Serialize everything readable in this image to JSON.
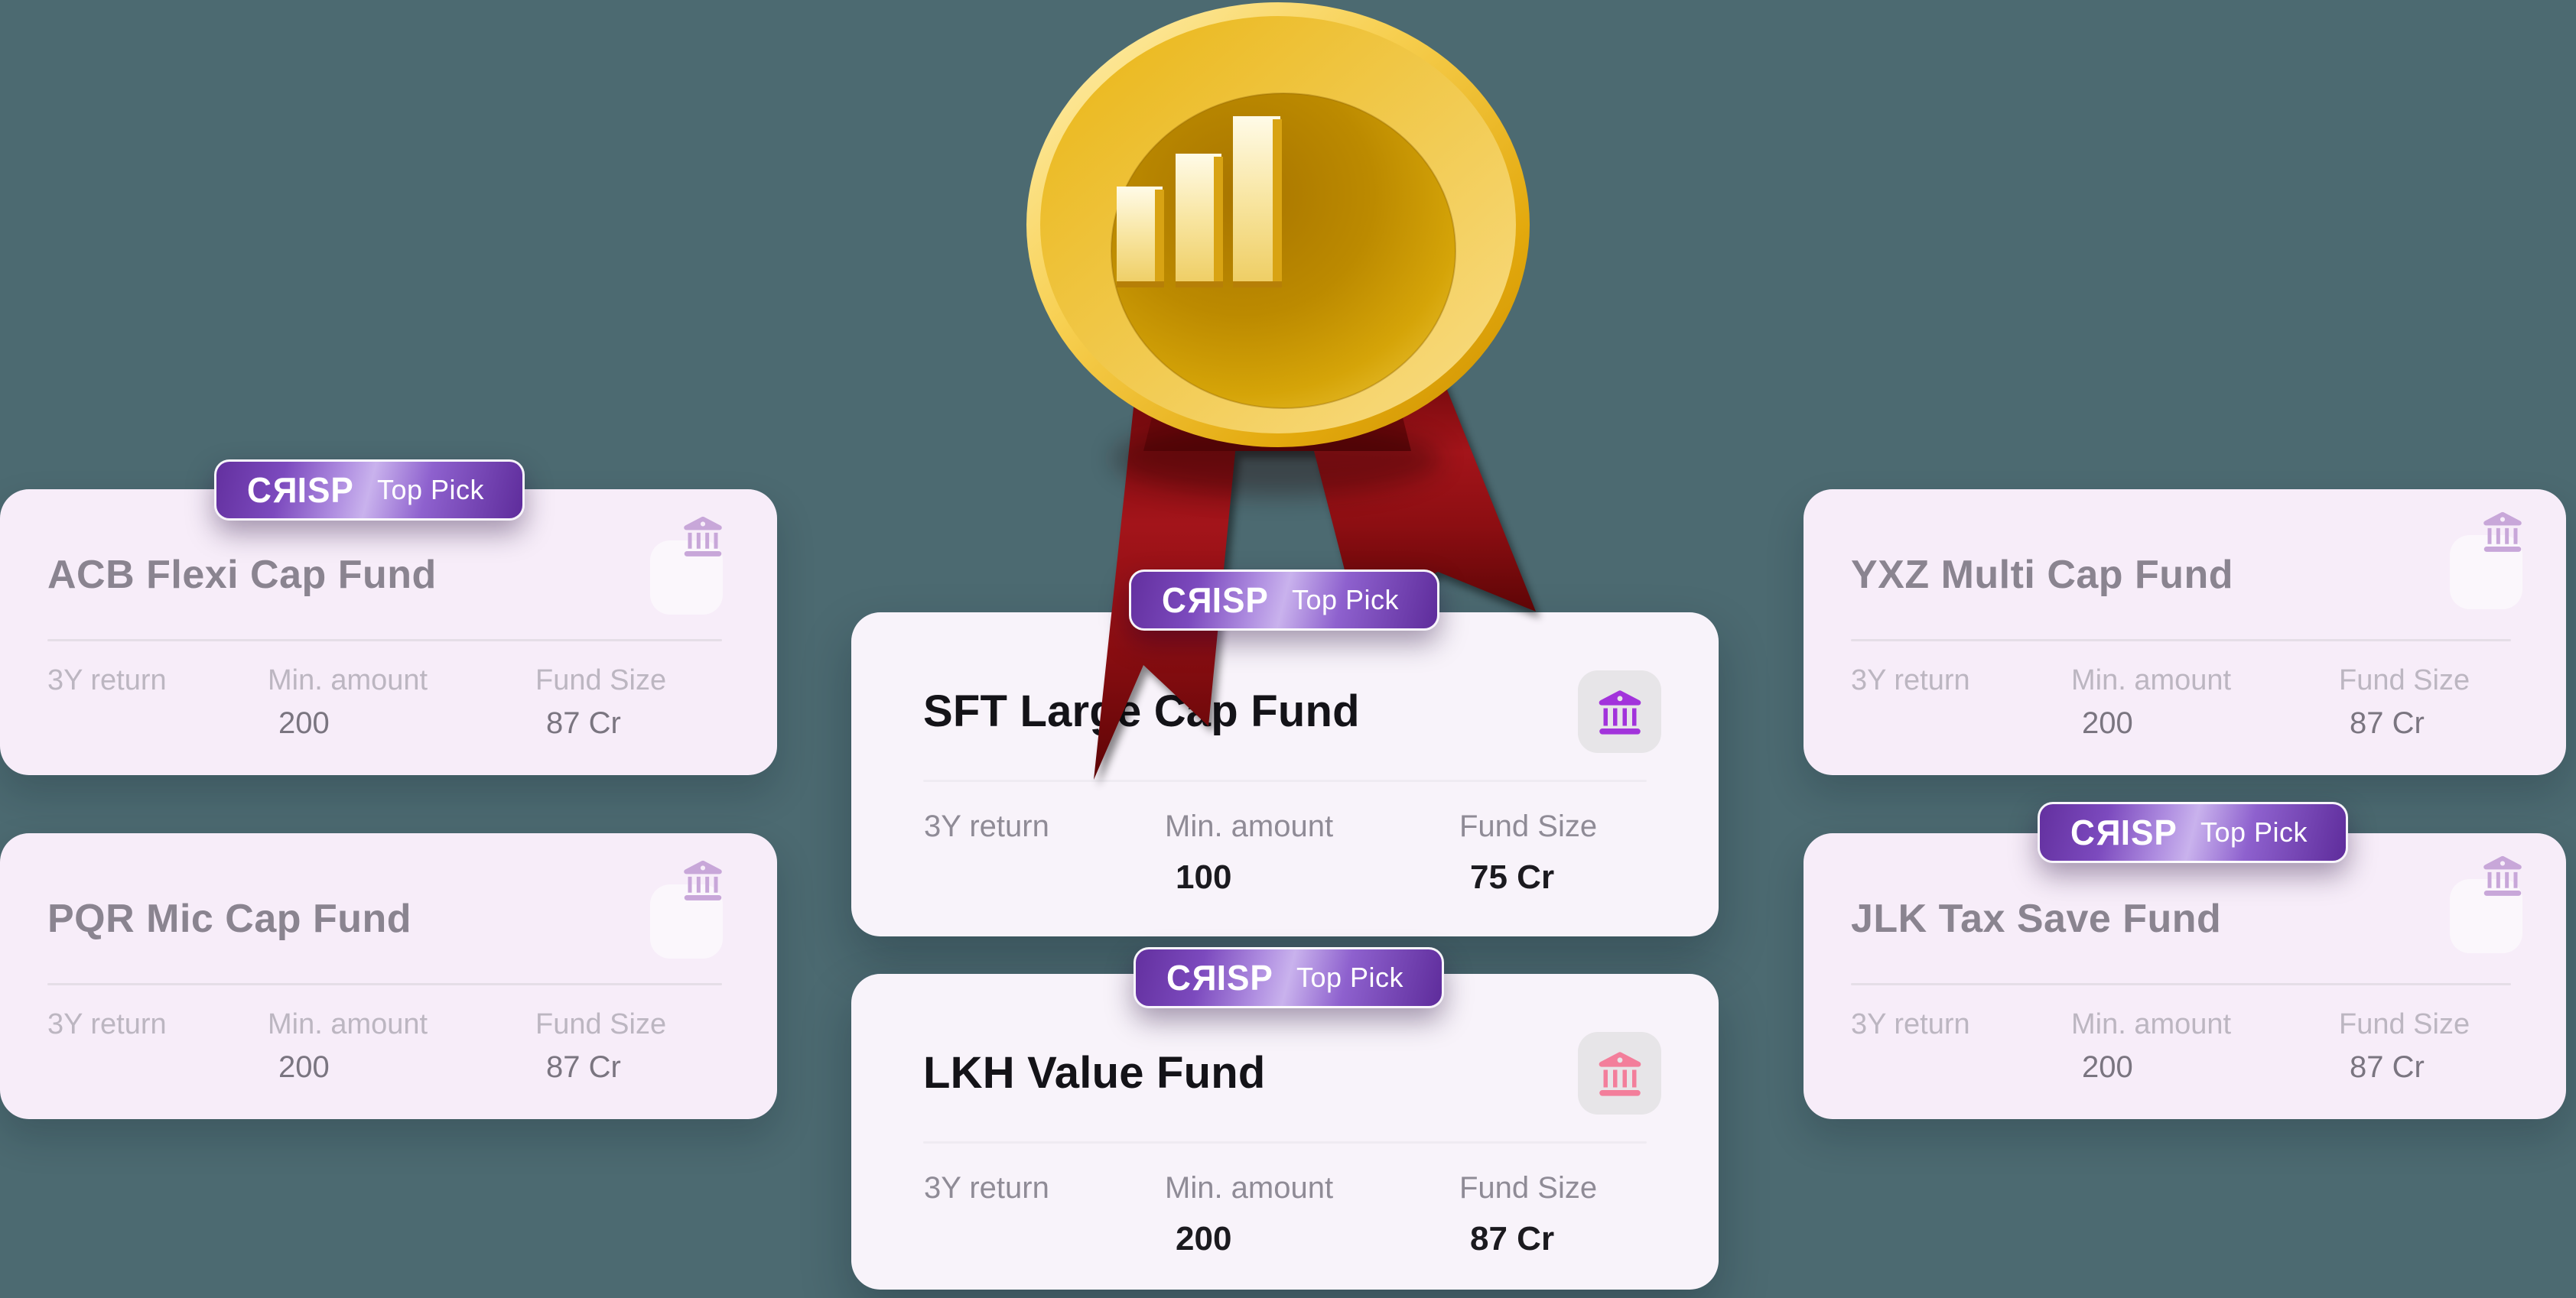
{
  "badge": {
    "brand": "CRISP",
    "label": "Top Pick"
  },
  "medal": {
    "icon": "gold-medal-bar-chart",
    "ribbon": "red-award-ribbon"
  },
  "cards": [
    {
      "title": "ACB Flexi Cap Fund",
      "stats": [
        {
          "label": "3Y return",
          "value": ""
        },
        {
          "label": "Min. amount",
          "value": "200"
        },
        {
          "label": "Fund Size",
          "value": "87 Cr"
        }
      ]
    },
    {
      "title": "PQR Mic Cap Fund",
      "stats": [
        {
          "label": "3Y return",
          "value": ""
        },
        {
          "label": "Min. amount",
          "value": "200"
        },
        {
          "label": "Fund Size",
          "value": "87 Cr"
        }
      ]
    },
    {
      "title": "SFT Large Cap Fund",
      "stats": [
        {
          "label": "3Y return",
          "value": ""
        },
        {
          "label": "Min. amount",
          "value": "100"
        },
        {
          "label": "Fund Size",
          "value": "75 Cr"
        }
      ]
    },
    {
      "title": "LKH Value Fund",
      "stats": [
        {
          "label": "3Y return",
          "value": ""
        },
        {
          "label": "Min. amount",
          "value": "200"
        },
        {
          "label": "Fund Size",
          "value": "87 Cr"
        }
      ]
    },
    {
      "title": "YXZ Multi Cap Fund",
      "stats": [
        {
          "label": "3Y return",
          "value": ""
        },
        {
          "label": "Min. amount",
          "value": "200"
        },
        {
          "label": "Fund Size",
          "value": "87 Cr"
        }
      ]
    },
    {
      "title": "JLK Tax Save Fund",
      "stats": [
        {
          "label": "3Y return",
          "value": ""
        },
        {
          "label": "Min. amount",
          "value": "200"
        },
        {
          "label": "Fund Size",
          "value": "87 Cr"
        }
      ]
    }
  ],
  "colors": {
    "background": "#4C6A71",
    "card_muted": "#F7EDF9",
    "card_focused": "#F8F3FA",
    "badge_purple": "#6B35A8",
    "icon_lavender": "#C8A7D9",
    "icon_purple": "#A233DB",
    "icon_pink": "#F37E9B",
    "gold": "#E8B21F",
    "ribbon_red": "#9E1116"
  }
}
